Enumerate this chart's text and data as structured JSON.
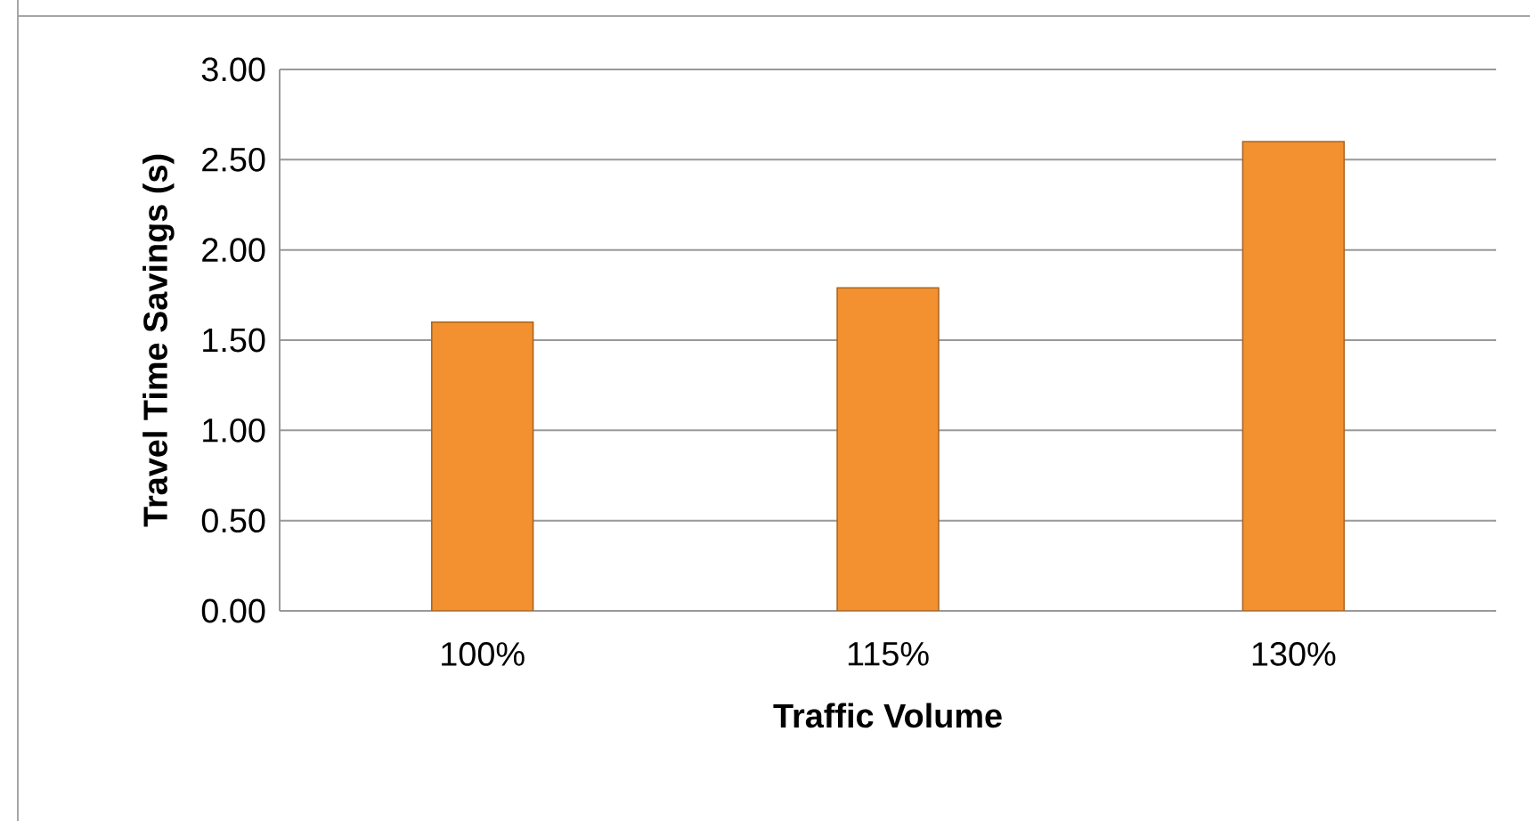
{
  "chart_data": {
    "type": "bar",
    "xlabel": "Traffic Volume",
    "ylabel": "Travel Time Savings (s)",
    "categories": [
      "100%",
      "115%",
      "130%"
    ],
    "values": [
      1.6,
      1.79,
      2.6
    ],
    "color": "#f39130",
    "ylim": [
      0,
      3
    ],
    "yticks": [
      {
        "value": 0,
        "label": "0.00"
      },
      {
        "value": 0.5,
        "label": "0.50"
      },
      {
        "value": 1,
        "label": "1.00"
      },
      {
        "value": 1.5,
        "label": "1.50"
      },
      {
        "value": 2,
        "label": "2.00"
      },
      {
        "value": 2.5,
        "label": "2.50"
      },
      {
        "value": 3,
        "label": "3.00"
      }
    ],
    "grid": "y"
  }
}
